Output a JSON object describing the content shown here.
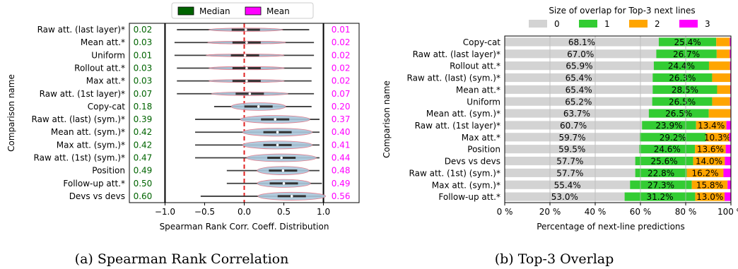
{
  "charts": [
    {
      "caption": "(a) Spearman Rank Correlation",
      "chart_data": {
        "type": "violin",
        "ylabel": "Comparison name",
        "xlabel": "Spearman Rank Corr. Coeff. Distribution",
        "xlim": [
          -1.45,
          1.45
        ],
        "xticks": [
          -1.0,
          -0.5,
          0.0,
          0.5,
          1.0
        ],
        "xtick_labels": [
          "−1.0",
          "−0.5",
          "0.0",
          "0.5",
          "1.0"
        ],
        "vertical_lines": [
          {
            "x": -1.0,
            "color": "#000000",
            "style": "solid"
          },
          {
            "x": 0.0,
            "color": "#e02020",
            "style": "dashed"
          },
          {
            "x": 1.0,
            "color": "#000000",
            "style": "solid"
          }
        ],
        "legend": {
          "placement": "top-center",
          "entries": [
            {
              "label": "Median",
              "color": "#006400"
            },
            {
              "label": "Mean",
              "color": "#ff00ff"
            }
          ]
        },
        "categories": [
          "Raw att. (last layer)*",
          "Mean att.*",
          "Uniform",
          "Rollout att.*",
          "Max att.*",
          "Raw att. (1st layer)*",
          "Copy-cat",
          "Raw att. (last) (sym.)*",
          "Mean att. (sym.)*",
          "Max att. (sym.)*",
          "Raw att. (1st) (sym.)*",
          "Position",
          "Follow-up att.*",
          "Devs vs devs"
        ],
        "median": [
          "0.02",
          "0.03",
          "0.01",
          "0.03",
          "0.03",
          "0.07",
          "0.18",
          "0.39",
          "0.42",
          "0.42",
          "0.47",
          "0.49",
          "0.50",
          "0.60"
        ],
        "mean": [
          "0.01",
          "0.02",
          "0.02",
          "0.02",
          "0.02",
          "0.07",
          "0.20",
          "0.37",
          "0.40",
          "0.41",
          "0.44",
          "0.48",
          "0.49",
          "0.56"
        ],
        "distribution": [
          {
            "min": -0.85,
            "max": 0.82,
            "width": 0.25
          },
          {
            "min": -0.88,
            "max": 0.88,
            "width": 0.22
          },
          {
            "min": -0.88,
            "max": 0.88,
            "width": 0.2
          },
          {
            "min": -0.85,
            "max": 0.85,
            "width": 0.24
          },
          {
            "min": -0.85,
            "max": 0.85,
            "width": 0.22
          },
          {
            "min": -0.85,
            "max": 0.88,
            "width": 0.28
          },
          {
            "min": -0.38,
            "max": 0.85,
            "width": 0.6
          },
          {
            "min": -0.62,
            "max": 0.95,
            "width": 0.6
          },
          {
            "min": -0.62,
            "max": 0.95,
            "width": 0.62
          },
          {
            "min": -0.62,
            "max": 0.95,
            "width": 0.62
          },
          {
            "min": -0.62,
            "max": 0.95,
            "width": 0.6
          },
          {
            "min": -0.22,
            "max": 0.95,
            "width": 0.65
          },
          {
            "min": -0.22,
            "max": 0.98,
            "width": 0.62
          },
          {
            "min": -0.55,
            "max": 0.98,
            "width": 0.62
          }
        ],
        "colors": {
          "violin": "#a9c6da",
          "violin_edge": "#e07080",
          "whisker": "#3c3c3c",
          "median_text": "#006400",
          "mean_text": "#ff00ff"
        }
      }
    },
    {
      "caption": "(b) Top-3 Overlap",
      "chart_data": {
        "type": "bar",
        "orientation": "horizontal",
        "stacked": true,
        "ylabel": "Comparison name",
        "xlabel": "Percentage of next-line predictions",
        "xlim": [
          0,
          100
        ],
        "xticks": [
          0,
          20,
          40,
          60,
          80,
          100
        ],
        "xtick_labels": [
          "0 %",
          "20 %",
          "40 %",
          "60 %",
          "80 %",
          "100 %"
        ],
        "grid": "vertical",
        "legend": {
          "title": "Size of overlap for Top-3 next lines",
          "placement": "top-center",
          "entries": [
            "0",
            "1",
            "2",
            "3"
          ]
        },
        "categories": [
          "Copy-cat",
          "Raw att. (last layer)*",
          "Rollout att.*",
          "Raw att. (last) (sym.)*",
          "Mean att.*",
          "Uniform",
          "Mean att. (sym.)*",
          "Raw att. (1st layer)*",
          "Max att.*",
          "Position",
          "Devs vs devs",
          "Raw att. (1st) (sym.)*",
          "Max att. (sym.)*",
          "Follow-up att.*"
        ],
        "series": [
          {
            "name": "0",
            "color": "#d3d3d3",
            "values": [
              68.1,
              67.0,
              65.9,
              65.4,
              65.4,
              65.2,
              63.7,
              60.7,
              59.7,
              59.5,
              57.7,
              57.7,
              55.4,
              53.0
            ],
            "labels": [
              "68.1%",
              "67.0%",
              "65.9%",
              "65.4%",
              "65.4%",
              "65.2%",
              "63.7%",
              "60.7%",
              "59.7%",
              "59.5%",
              "57.7%",
              "57.7%",
              "55.4%",
              "53.0%"
            ]
          },
          {
            "name": "1",
            "color": "#33cc33",
            "values": [
              25.4,
              26.7,
              24.4,
              26.3,
              28.5,
              26.5,
              26.5,
              23.9,
              29.2,
              24.6,
              25.6,
              22.8,
              27.3,
              31.2
            ],
            "labels": [
              "25.4%",
              "26.7%",
              "24.4%",
              "26.3%",
              "28.5%",
              "26.5%",
              "26.5%",
              "23.9%",
              "29.2%",
              "24.6%",
              "25.6%",
              "22.8%",
              "27.3%",
              "31.2%"
            ]
          },
          {
            "name": "2",
            "color": "#ffa500",
            "values": [
              6.0,
              5.8,
              9.3,
              8.0,
              5.8,
              7.9,
              9.6,
              13.4,
              10.3,
              13.6,
              14.0,
              16.2,
              15.8,
              13.0
            ],
            "labels": [
              "",
              "",
              "",
              "",
              "",
              "",
              "",
              "13.4%",
              "10.3%",
              "13.6%",
              "14.0%",
              "16.2%",
              "15.8%",
              "13.0%"
            ]
          },
          {
            "name": "3",
            "color": "#ff00ff",
            "values": [
              0.5,
              0.5,
              0.4,
              0.3,
              0.3,
              0.4,
              0.2,
              2.0,
              0.8,
              2.3,
              2.7,
              3.3,
              1.5,
              2.8
            ],
            "labels": [
              "",
              "",
              "",
              "",
              "",
              "",
              "",
              "",
              "",
              "",
              "",
              "",
              "",
              ""
            ]
          }
        ]
      }
    }
  ]
}
